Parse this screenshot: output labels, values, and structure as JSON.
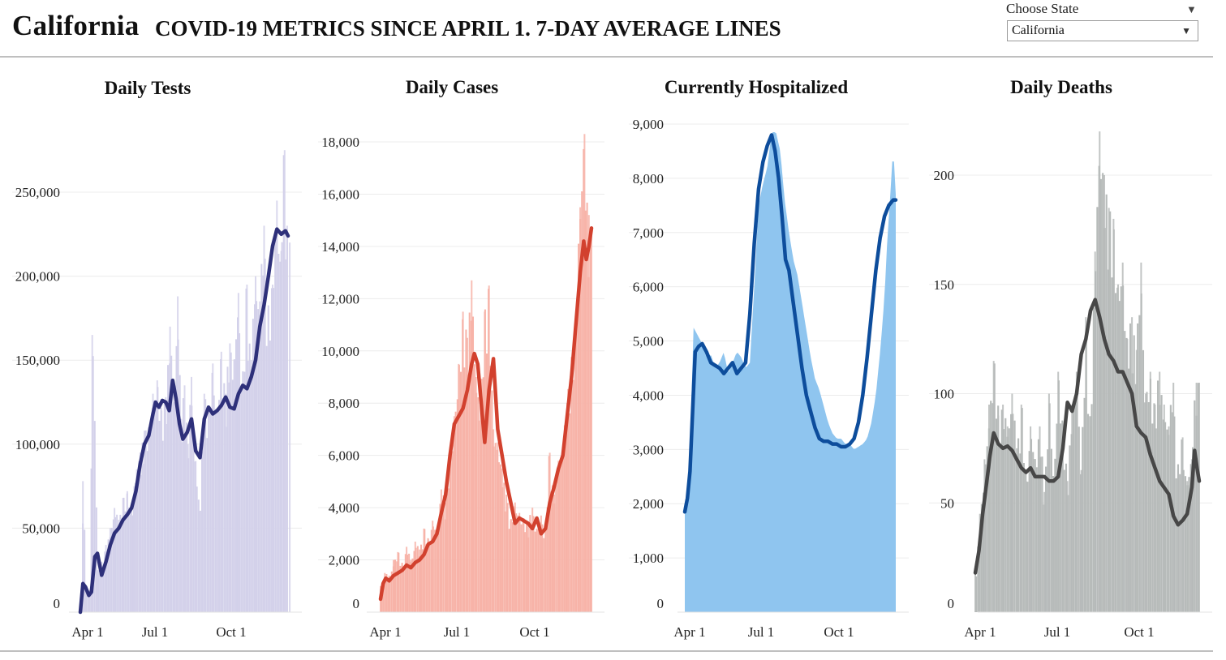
{
  "header": {
    "state": "California",
    "subtitle": "COVID-19 METRICS SINCE APRIL 1. 7-DAY AVERAGE LINES",
    "picker_label": "Choose State",
    "selected_state": "California"
  },
  "chart_data": [
    {
      "type": "bar",
      "id": "tests",
      "title": "Daily Tests",
      "ylim": [
        0,
        250000
      ],
      "yticks": [
        0,
        50000,
        100000,
        150000,
        200000,
        250000
      ],
      "ytick_labels": [
        "0",
        "50,000",
        "100,000",
        "150,000",
        "200,000",
        "250,000"
      ],
      "xticks": [
        "Apr 1",
        "Jul 1",
        "Oct 1"
      ],
      "bar_color": "#d3d1ea",
      "line_color": "#2e307a",
      "series": [
        {
          "name": "Daily",
          "x_days": [
            0,
            3,
            6,
            10,
            14,
            20,
            25,
            30,
            35,
            40,
            45,
            50,
            55,
            60,
            63,
            66,
            70,
            75,
            80,
            85,
            90,
            95,
            100,
            105,
            110,
            114,
            118,
            122,
            126,
            130,
            135,
            140,
            145,
            150,
            155,
            160,
            165,
            170,
            175,
            180,
            185,
            190,
            195,
            200,
            205,
            210,
            215,
            220,
            225,
            230,
            235,
            239,
            242,
            245
          ],
          "values": [
            2000,
            78000,
            15000,
            12000,
            165000,
            25000,
            30000,
            40000,
            50000,
            62000,
            55000,
            68000,
            72000,
            60000,
            75000,
            85000,
            95000,
            108000,
            110000,
            130000,
            138000,
            120000,
            128000,
            170000,
            125000,
            188000,
            115000,
            135000,
            100000,
            140000,
            90000,
            60000,
            130000,
            120000,
            148000,
            120000,
            155000,
            130000,
            160000,
            150000,
            190000,
            135000,
            195000,
            150000,
            200000,
            185000,
            230000,
            180000,
            195000,
            245000,
            215000,
            275000,
            230000,
            220000
          ]
        },
        {
          "name": "7-day average",
          "x_days": [
            0,
            3,
            6,
            10,
            13,
            17,
            20,
            25,
            30,
            35,
            40,
            45,
            50,
            55,
            60,
            65,
            70,
            75,
            80,
            85,
            88,
            92,
            96,
            100,
            104,
            108,
            112,
            116,
            120,
            125,
            130,
            135,
            140,
            145,
            150,
            155,
            160,
            165,
            170,
            175,
            180,
            185,
            190,
            195,
            200,
            205,
            210,
            215,
            220,
            225,
            230,
            235,
            240,
            243
          ],
          "values": [
            0,
            17000,
            15000,
            10000,
            12000,
            33000,
            35000,
            22000,
            30000,
            40000,
            47000,
            50000,
            55000,
            58000,
            62000,
            72000,
            88000,
            100000,
            105000,
            118000,
            125000,
            122000,
            126000,
            125000,
            120000,
            138000,
            127000,
            112000,
            103000,
            107000,
            115000,
            96000,
            92000,
            115000,
            122000,
            118000,
            120000,
            123000,
            128000,
            122000,
            121000,
            130000,
            135000,
            133000,
            140000,
            150000,
            170000,
            183000,
            200000,
            218000,
            228000,
            225000,
            227000,
            224000
          ]
        }
      ]
    },
    {
      "type": "bar",
      "id": "cases",
      "title": "Daily Cases",
      "ylim": [
        0,
        18000
      ],
      "yticks": [
        0,
        2000,
        4000,
        6000,
        8000,
        10000,
        12000,
        14000,
        16000,
        18000
      ],
      "ytick_labels": [
        "0",
        "2,000",
        "4,000",
        "6,000",
        "8,000",
        "10,000",
        "12,000",
        "14,000",
        "16,000",
        "18,000"
      ],
      "xticks": [
        "Apr 1",
        "Jul 1",
        "Oct 1"
      ],
      "bar_color": "#f7b3a8",
      "line_color": "#d2412e",
      "series": [
        {
          "name": "Daily",
          "x_days": [
            0,
            5,
            10,
            15,
            20,
            25,
            30,
            35,
            40,
            45,
            50,
            55,
            60,
            65,
            70,
            75,
            80,
            85,
            90,
            95,
            100,
            105,
            110,
            115,
            120,
            125,
            130,
            135,
            140,
            145,
            150,
            155,
            160,
            165,
            170,
            175,
            180,
            185,
            190,
            195,
            200,
            205,
            210,
            215,
            220,
            225,
            230,
            235,
            240,
            243
          ],
          "values": [
            1000,
            1500,
            1400,
            2000,
            2300,
            1800,
            2500,
            2000,
            2700,
            2400,
            3200,
            2800,
            3500,
            3200,
            4700,
            4200,
            6000,
            7500,
            9500,
            11500,
            10500,
            12700,
            9000,
            8000,
            11500,
            12500,
            7000,
            6500,
            5500,
            4500,
            3500,
            4200,
            3800,
            3600,
            3400,
            4000,
            3200,
            3700,
            3000,
            6100,
            4500,
            5800,
            6300,
            8000,
            9500,
            11000,
            15500,
            18300,
            15200,
            14500
          ]
        },
        {
          "name": "7-day average",
          "x_days": [
            0,
            3,
            6,
            10,
            15,
            20,
            25,
            30,
            35,
            40,
            45,
            50,
            55,
            60,
            65,
            70,
            75,
            80,
            85,
            90,
            95,
            100,
            105,
            108,
            112,
            116,
            120,
            125,
            130,
            135,
            140,
            145,
            150,
            155,
            160,
            165,
            170,
            175,
            180,
            185,
            190,
            195,
            200,
            205,
            210,
            215,
            220,
            225,
            230,
            234,
            237,
            240,
            243
          ],
          "values": [
            500,
            1100,
            1300,
            1200,
            1400,
            1500,
            1600,
            1800,
            1700,
            1900,
            2000,
            2200,
            2600,
            2700,
            3000,
            3800,
            4500,
            6000,
            7200,
            7500,
            7800,
            8500,
            9500,
            9900,
            9500,
            8000,
            6500,
            8500,
            9700,
            7000,
            6000,
            5000,
            4200,
            3400,
            3600,
            3500,
            3400,
            3200,
            3600,
            3000,
            3200,
            4200,
            4800,
            5500,
            6000,
            7500,
            9000,
            11000,
            13000,
            14200,
            13500,
            14000,
            14700
          ]
        }
      ]
    },
    {
      "type": "area",
      "id": "hospitalized",
      "title": "Currently Hospitalized",
      "ylim": [
        0,
        9000
      ],
      "yticks": [
        0,
        1000,
        2000,
        3000,
        4000,
        5000,
        6000,
        7000,
        8000,
        9000
      ],
      "ytick_labels": [
        "0",
        "1,000",
        "2,000",
        "3,000",
        "4,000",
        "5,000",
        "6,000",
        "7,000",
        "8,000",
        "9,000"
      ],
      "xticks": [
        "Apr 1",
        "Jul 1",
        "Oct 1"
      ],
      "bar_color": "#8fc5ef",
      "line_color": "#0d4d9c",
      "series": [
        {
          "name": "Daily",
          "x_days": [
            0,
            3,
            6,
            10,
            15,
            20,
            25,
            30,
            35,
            40,
            45,
            50,
            55,
            60,
            65,
            70,
            75,
            80,
            85,
            90,
            95,
            100,
            105,
            110,
            115,
            120,
            125,
            130,
            135,
            140,
            145,
            150,
            155,
            160,
            165,
            170,
            175,
            180,
            185,
            190,
            195,
            200,
            205,
            210,
            215,
            220,
            225,
            230,
            233,
            236,
            240,
            243
          ],
          "values": [
            1900,
            2300,
            3000,
            5250,
            5100,
            4950,
            4700,
            4750,
            4500,
            4600,
            4800,
            4400,
            4600,
            4800,
            4700,
            4500,
            4600,
            6000,
            7500,
            7900,
            8200,
            8850,
            8850,
            8500,
            7600,
            7000,
            6500,
            6200,
            5700,
            5200,
            4700,
            4300,
            4100,
            3800,
            3500,
            3300,
            3200,
            3200,
            3100,
            3100,
            3000,
            3050,
            3100,
            3200,
            3500,
            4000,
            4800,
            5800,
            6800,
            7500,
            8600,
            7700
          ]
        },
        {
          "name": "7-day average",
          "x_days": [
            0,
            3,
            6,
            9,
            12,
            16,
            20,
            25,
            30,
            35,
            40,
            45,
            50,
            55,
            60,
            65,
            70,
            75,
            80,
            85,
            90,
            95,
            100,
            104,
            108,
            112,
            116,
            120,
            125,
            130,
            135,
            140,
            145,
            150,
            155,
            160,
            165,
            170,
            175,
            180,
            185,
            190,
            195,
            200,
            205,
            210,
            215,
            220,
            225,
            230,
            235,
            240,
            243
          ],
          "values": [
            1850,
            2100,
            2600,
            3700,
            4800,
            4900,
            4950,
            4800,
            4600,
            4550,
            4500,
            4400,
            4500,
            4600,
            4400,
            4500,
            4600,
            5500,
            6800,
            7800,
            8300,
            8600,
            8800,
            8500,
            8000,
            7300,
            6500,
            6300,
            5700,
            5100,
            4500,
            4000,
            3700,
            3400,
            3200,
            3150,
            3150,
            3100,
            3100,
            3050,
            3050,
            3100,
            3200,
            3500,
            4000,
            4700,
            5500,
            6300,
            6900,
            7300,
            7500,
            7600,
            7600
          ]
        }
      ]
    },
    {
      "type": "bar",
      "id": "deaths",
      "title": "Daily Deaths",
      "ylim": [
        0,
        220
      ],
      "yticks": [
        0,
        50,
        100,
        150,
        200
      ],
      "ytick_labels": [
        "0",
        "50",
        "100",
        "150",
        "200"
      ],
      "xticks": [
        "Apr 1",
        "Jul 1",
        "Oct 1"
      ],
      "bar_color": "#b7bbba",
      "line_color": "#474747",
      "series": [
        {
          "name": "Daily",
          "x_days": [
            0,
            5,
            10,
            15,
            20,
            25,
            30,
            35,
            40,
            45,
            50,
            55,
            60,
            65,
            70,
            75,
            80,
            85,
            90,
            95,
            100,
            105,
            110,
            115,
            120,
            125,
            130,
            135,
            140,
            145,
            150,
            155,
            160,
            165,
            170,
            175,
            180,
            185,
            190,
            195,
            200,
            205,
            210,
            215,
            220,
            225,
            230,
            235,
            240,
            243
          ],
          "values": [
            20,
            45,
            70,
            95,
            115,
            90,
            95,
            85,
            100,
            75,
            95,
            60,
            85,
            70,
            85,
            55,
            100,
            60,
            110,
            85,
            60,
            95,
            110,
            65,
            135,
            85,
            165,
            220,
            200,
            185,
            180,
            150,
            160,
            125,
            135,
            120,
            160,
            100,
            110,
            95,
            110,
            95,
            85,
            105,
            65,
            80,
            60,
            70,
            105,
            105
          ]
        },
        {
          "name": "7-day average",
          "x_days": [
            0,
            4,
            8,
            12,
            16,
            20,
            25,
            30,
            35,
            40,
            45,
            50,
            55,
            60,
            65,
            70,
            75,
            80,
            85,
            90,
            95,
            100,
            105,
            110,
            115,
            120,
            125,
            130,
            135,
            140,
            145,
            150,
            155,
            160,
            165,
            170,
            175,
            180,
            185,
            190,
            195,
            200,
            205,
            210,
            215,
            220,
            225,
            230,
            235,
            238,
            241,
            243
          ],
          "values": [
            18,
            28,
            45,
            58,
            72,
            82,
            77,
            75,
            76,
            74,
            70,
            66,
            64,
            66,
            62,
            62,
            62,
            60,
            60,
            62,
            75,
            96,
            92,
            100,
            118,
            125,
            138,
            143,
            135,
            125,
            118,
            115,
            110,
            110,
            105,
            100,
            85,
            82,
            80,
            72,
            66,
            60,
            57,
            54,
            44,
            40,
            42,
            45,
            57,
            74,
            65,
            60
          ]
        }
      ]
    }
  ]
}
